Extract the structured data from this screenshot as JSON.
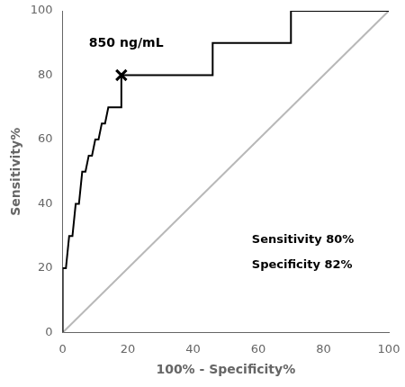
{
  "chart_data": {
    "type": "line",
    "xlabel": "100% - Specificity%",
    "ylabel": "Sensitivity%",
    "xlim": [
      0,
      100
    ],
    "ylim": [
      0,
      100
    ],
    "xticks": [
      0,
      20,
      40,
      60,
      80,
      100
    ],
    "yticks": [
      0,
      20,
      40,
      60,
      80,
      100
    ],
    "grid": false,
    "series": [
      {
        "color": "#b8b8b8",
        "x": [
          0,
          100
        ],
        "values": [
          0,
          100
        ]
      },
      {
        "color": "#000000",
        "x": [
          0,
          0,
          1,
          2,
          3,
          4,
          5,
          6,
          7,
          8,
          9,
          10,
          11,
          12,
          13,
          14,
          15,
          18,
          18,
          46,
          46,
          70,
          70,
          100
        ],
        "values": [
          0,
          20,
          20,
          30,
          30,
          40,
          40,
          50,
          50,
          55,
          55,
          60,
          60,
          65,
          65,
          70,
          70,
          70,
          80,
          80,
          90,
          90,
          100,
          100
        ]
      },
      {
        "type": "scatter",
        "marker": "x",
        "color": "#000000",
        "x": [
          18
        ],
        "values": [
          80
        ]
      }
    ],
    "annotations": [
      [
        "850 ng/mL"
      ],
      [
        "Sensitivity 80%",
        "Specificity 82%"
      ]
    ]
  }
}
